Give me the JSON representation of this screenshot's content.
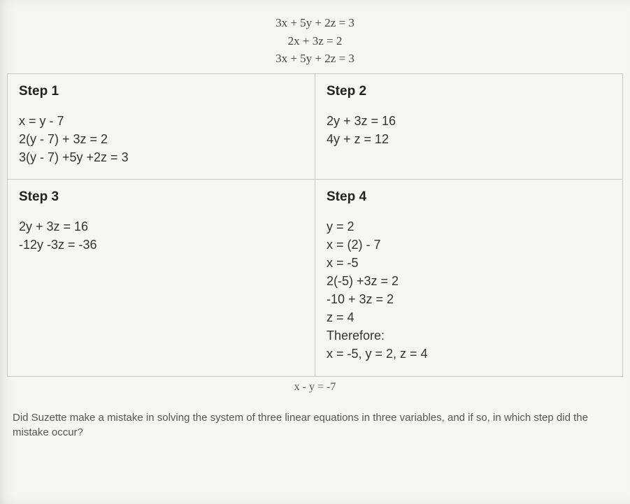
{
  "topEquations": [
    "3x + 5y + 2z = 3",
    "2x + 3z = 2",
    "3x + 5y + 2z = 3"
  ],
  "steps": {
    "r1c1": {
      "title": "Step 1",
      "body": "x = y - 7\n2(y - 7) + 3z = 2\n3(y - 7) +5y +2z = 3"
    },
    "r1c2": {
      "title": "Step 2",
      "body": "2y + 3z = 16\n4y + z = 12"
    },
    "r2c1": {
      "title": "Step 3",
      "body": "2y + 3z = 16\n-12y -3z = -36"
    },
    "r2c2": {
      "title": "Step 4",
      "body": "y = 2\nx = (2) - 7\nx = -5\n2(-5) +3z = 2\n-10 + 3z = 2\nz = 4\nTherefore:\nx = -5, y = 2, z = 4"
    }
  },
  "belowEquation": "x - y = -7",
  "question": "Did Suzette make a mistake in solving the system of three linear equations in three variables, and if so, in which step did the mistake occur?",
  "colors": {
    "background": "#f5f5f3",
    "border": "#c8c8c8",
    "text": "#333",
    "titleText": "#222"
  }
}
